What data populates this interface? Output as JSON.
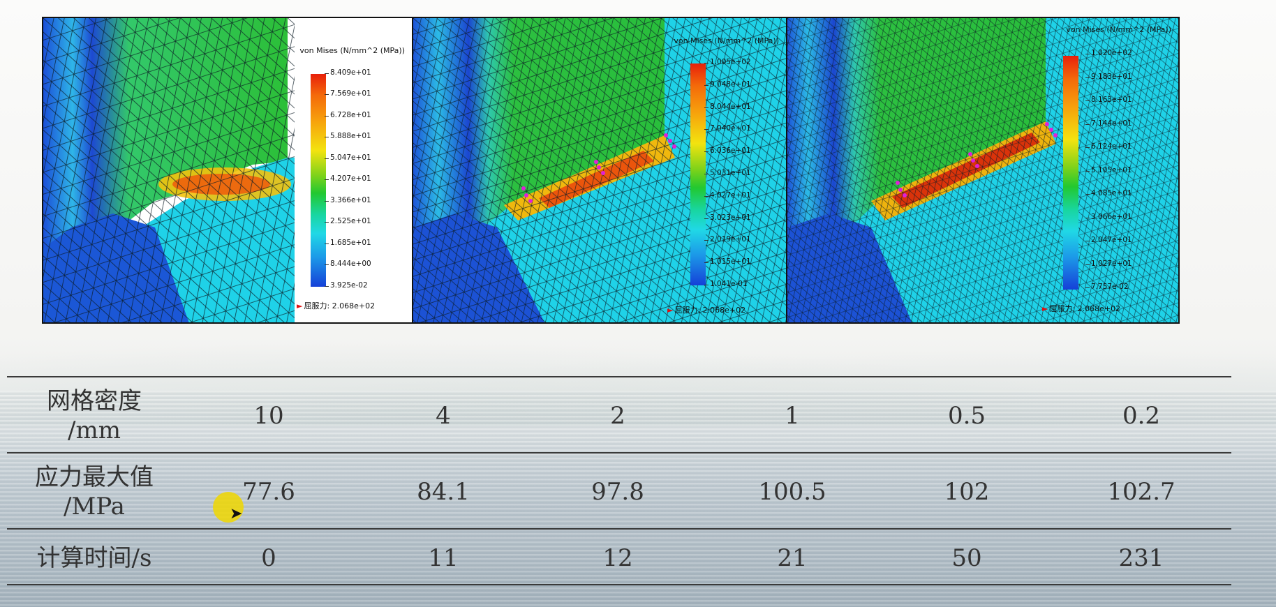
{
  "panels": [
    {
      "legend_title": "von Mises (N/mm^2 (MPa))",
      "ticks": [
        "8.409e+01",
        "7.569e+01",
        "6.728e+01",
        "5.888e+01",
        "5.047e+01",
        "4.207e+01",
        "3.366e+01",
        "2.525e+01",
        "1.685e+01",
        "8.444e+00",
        "3.925e-02"
      ],
      "yield_label": "屈服力: 2.068e+02"
    },
    {
      "legend_title": "von Mises (N/mm^2 (MPa))",
      "ticks": [
        "1.005e+02",
        "9.048e+01",
        "8.044e+01",
        "7.040e+01",
        "6.036e+01",
        "5.031e+01",
        "4.027e+01",
        "3.023e+01",
        "2.019e+01",
        "1.015e+01",
        "1.041e-01"
      ],
      "yield_label": "屈服力: 2.068e+02"
    },
    {
      "legend_title": "von Mises (N/mm^2 (MPa))",
      "ticks": [
        "1.020e+02",
        "9.183e+01",
        "8.163e+01",
        "7.144e+01",
        "6.124e+01",
        "5.105e+01",
        "4.085e+01",
        "3.066e+01",
        "2.047e+01",
        "1.027e+01",
        "7.757e-02"
      ],
      "yield_label": "屈服力: 2.068e+02"
    }
  ],
  "table": {
    "rows": [
      {
        "header": [
          "网格密度",
          "/mm"
        ],
        "values": [
          "10",
          "4",
          "2",
          "1",
          "0.5",
          "0.2"
        ]
      },
      {
        "header": [
          "应力最大值",
          "/MPa"
        ],
        "values": [
          "77.6",
          "84.1",
          "97.8",
          "100.5",
          "102",
          "102.7"
        ]
      },
      {
        "header": [
          "计算时间/s"
        ],
        "values": [
          "0",
          "11",
          "12",
          "21",
          "50",
          "231"
        ]
      }
    ]
  },
  "colors": {
    "stress_high": "#e8200a",
    "stress_mid": "#22c830",
    "stress_low": "#1540d8",
    "mesh_face": "#19d2e6",
    "cursor": "#f0d700"
  }
}
